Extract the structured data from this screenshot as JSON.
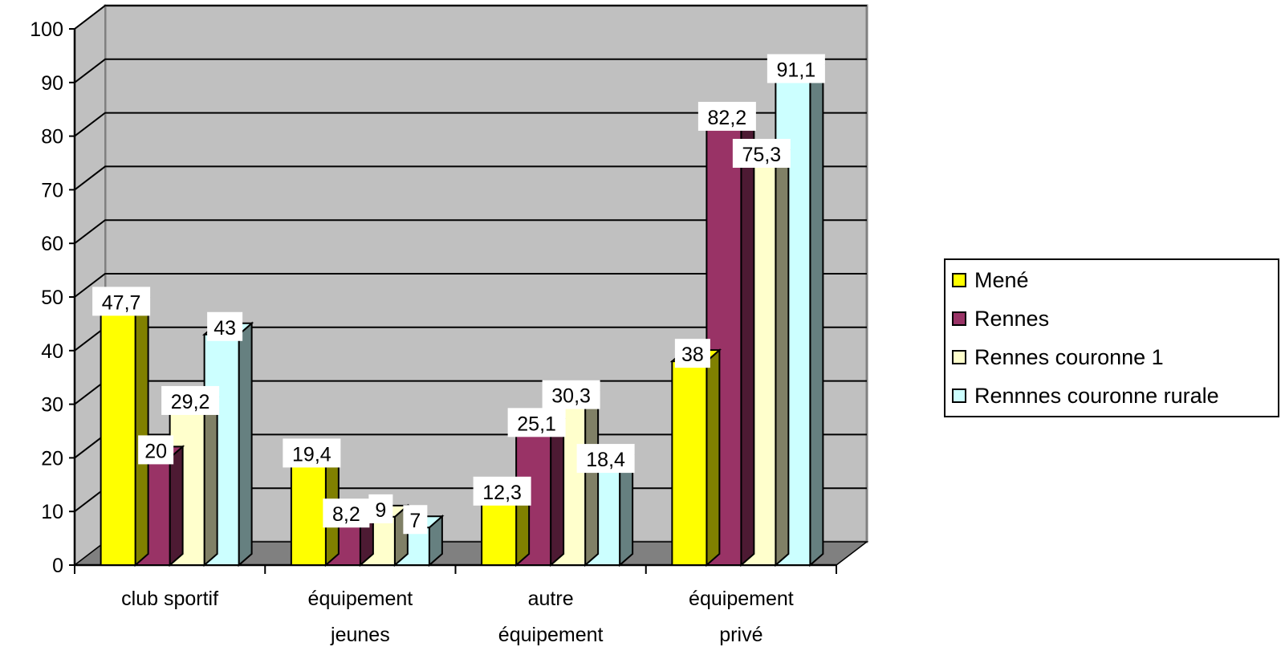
{
  "chart_data": {
    "type": "bar",
    "categories": [
      [
        "club sportif"
      ],
      [
        "équipement",
        "jeunes"
      ],
      [
        "autre",
        "équipement"
      ],
      [
        "équipement",
        "privé"
      ]
    ],
    "series": [
      {
        "name": "Mené",
        "values": [
          47.7,
          19.4,
          12.3,
          38
        ]
      },
      {
        "name": "Rennes",
        "values": [
          20,
          8.2,
          25.1,
          82.2
        ]
      },
      {
        "name": "Rennes couronne 1",
        "values": [
          29.2,
          9,
          30.3,
          75.3
        ]
      },
      {
        "name": "Rennnes couronne rurale",
        "values": [
          43,
          7,
          18.4,
          91.1
        ]
      }
    ],
    "data_labels": [
      [
        "47,7",
        "19,4",
        "12,3",
        "38"
      ],
      [
        "20",
        "8,2",
        "25,1",
        "82,2"
      ],
      [
        "29,2",
        "9",
        "30,3",
        "75,3"
      ],
      [
        "43",
        "7",
        "18,4",
        "91,1"
      ]
    ],
    "yticks": [
      "0",
      "10",
      "20",
      "30",
      "40",
      "50",
      "60",
      "70",
      "80",
      "90",
      "100"
    ],
    "ylim": [
      0,
      100
    ],
    "grid": true,
    "legend_position": "right",
    "colors": {
      "series": [
        "#FFFF00",
        "#993366",
        "#FFFFCC",
        "#CCFFFF"
      ],
      "series_side": [
        "#808000",
        "#4D1A33",
        "#808066",
        "#668080"
      ],
      "wall": "#C0C0C0",
      "floor": "#808080"
    }
  },
  "legend": {
    "items": [
      {
        "label": "Mené"
      },
      {
        "label": "Rennes"
      },
      {
        "label": "Rennes couronne 1"
      },
      {
        "label": "Rennnes couronne rurale"
      }
    ]
  }
}
